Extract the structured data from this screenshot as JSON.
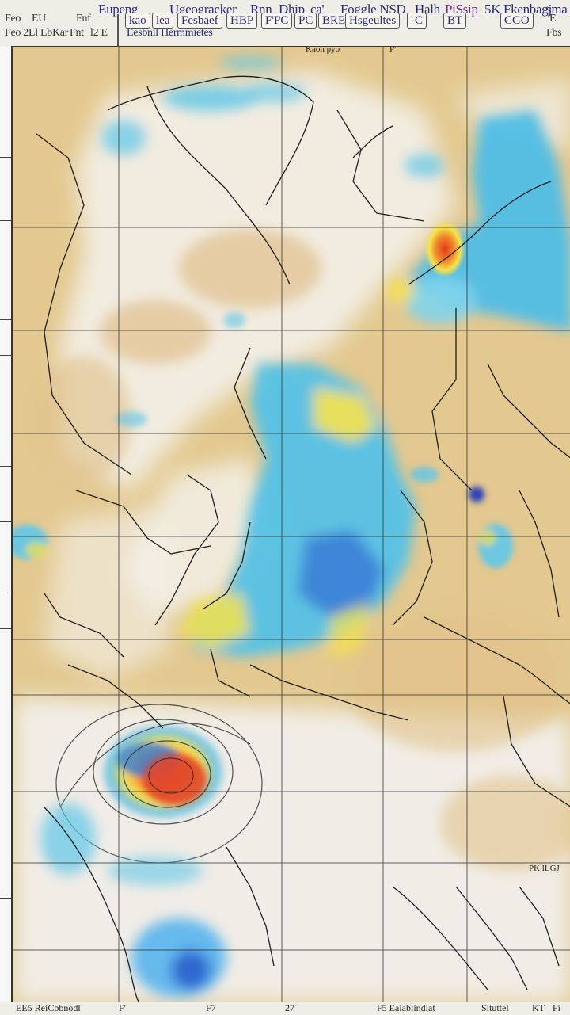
{
  "toolbar": {
    "row1": {
      "title": "Eupeng",
      "item2": "Ugeogracker",
      "item3": "Rnn",
      "item4": "Dhip",
      "item5": "ca'",
      "item6": "Foggle NSD",
      "item7": "Halh",
      "item8": "PiSsip",
      "item9": "5K",
      "item10": "Fkenbagj",
      "item11": "sma"
    },
    "row1b": {
      "left1": "Feo",
      "left2": "EU",
      "left3": "Fnf",
      "btn1": "kao",
      "btn2": "lea",
      "btn3": "Fesbaef",
      "btn4": "HBP",
      "btn5": "F'PC",
      "btn6": "PC",
      "btn7": "BRE",
      "btn8": "Hsgeultes",
      "btn9": "-C",
      "btn10": "BT",
      "btn11": "CGO",
      "btn12": "E"
    },
    "row2": {
      "left": "Feo 2Ll Lb",
      "left2": "Kar",
      "left3": "Fnt",
      "left4": "l2 E",
      "mid": "Eesbnil Hermmietes",
      "right": "Fbs"
    }
  },
  "map": {
    "top_label_1": "Kaon pyo",
    "top_label_2": "P'",
    "bottom_right_label": "PK lLGJ"
  },
  "bottombar": {
    "left": "EE5 ReiCbbnodl",
    "mid1": "F'",
    "mid2": "F7",
    "mid3": "27",
    "right1": "F5 Ealablindiat",
    "right2": "Sltuttel",
    "right3": "KT",
    "right4": "Fi"
  },
  "colors": {
    "land": "#e3c98f",
    "cloud_white": "#f4f2ee",
    "rain_cyan": "#5ec6e8",
    "rain_blue": "#3a7fd6",
    "rain_yellow": "#f6e24a",
    "rain_red": "#e2472a",
    "borders": "#2a2a2a"
  }
}
